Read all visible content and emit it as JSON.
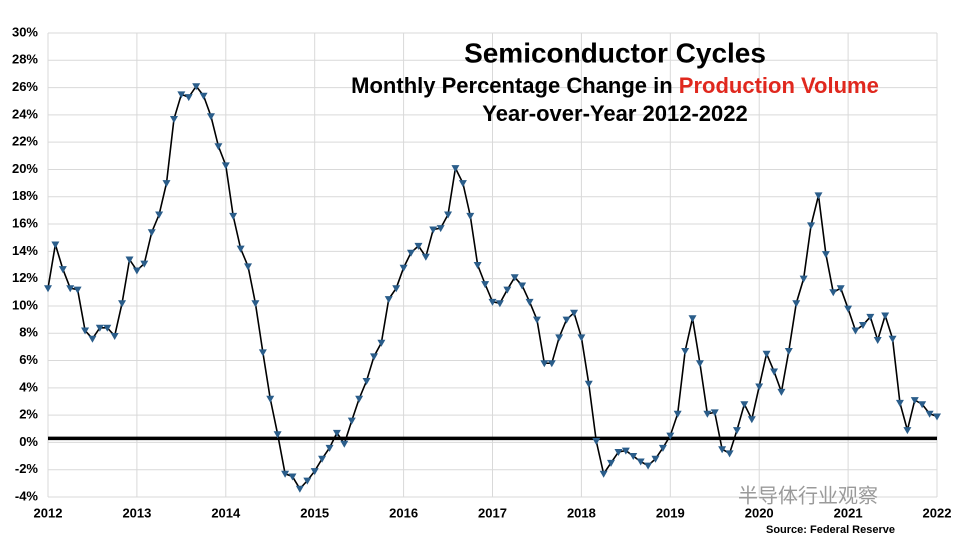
{
  "chart_data": {
    "type": "line",
    "title": "Semiconductor Cycles",
    "subtitle": [
      "Monthly Percentage Change in ",
      "Production Volume"
    ],
    "subtitle_line2": "Year-over-Year 2012-2022",
    "source": "Source: Federal Reserve",
    "watermark": "半导体行业观察",
    "color": "#000000",
    "marker_color": "#2a5d8a",
    "highlight_color": "#e0281e",
    "reference_line": 0.3,
    "grid": true,
    "xlim": [
      2012,
      2022
    ],
    "xticks": [
      2012,
      2013,
      2014,
      2015,
      2016,
      2017,
      2018,
      2019,
      2020,
      2021,
      2022
    ],
    "ylim": [
      -4,
      30
    ],
    "yticks": [
      {
        "value": -4,
        "label": "-4%"
      },
      {
        "value": -2,
        "label": "-2%"
      },
      {
        "value": 0,
        "label": "0%"
      },
      {
        "value": 2,
        "label": "2%"
      },
      {
        "value": 4,
        "label": "4%"
      },
      {
        "value": 6,
        "label": "6%"
      },
      {
        "value": 8,
        "label": "8%"
      },
      {
        "value": 10,
        "label": "10%"
      },
      {
        "value": 12,
        "label": "12%"
      },
      {
        "value": 14,
        "label": "14%"
      },
      {
        "value": 16,
        "label": "16%"
      },
      {
        "value": 18,
        "label": "18%"
      },
      {
        "value": 20,
        "label": "20%"
      },
      {
        "value": 22,
        "label": "22%"
      },
      {
        "value": 24,
        "label": "24%"
      },
      {
        "value": 26,
        "label": "26%"
      },
      {
        "value": 28,
        "label": "28%"
      },
      {
        "value": 30,
        "label": "30%"
      }
    ],
    "x": [
      2012,
      2012.083,
      2012.167,
      2012.25,
      2012.333,
      2012.417,
      2012.5,
      2012.583,
      2012.667,
      2012.75,
      2012.833,
      2012.917,
      2013,
      2013.083,
      2013.167,
      2013.25,
      2013.333,
      2013.417,
      2013.5,
      2013.583,
      2013.667,
      2013.75,
      2013.833,
      2013.917,
      2014,
      2014.083,
      2014.167,
      2014.25,
      2014.333,
      2014.417,
      2014.5,
      2014.583,
      2014.667,
      2014.75,
      2014.833,
      2014.917,
      2015,
      2015.083,
      2015.167,
      2015.25,
      2015.333,
      2015.417,
      2015.5,
      2015.583,
      2015.667,
      2015.75,
      2015.833,
      2015.917,
      2016,
      2016.083,
      2016.167,
      2016.25,
      2016.333,
      2016.417,
      2016.5,
      2016.583,
      2016.667,
      2016.75,
      2016.833,
      2016.917,
      2017,
      2017.083,
      2017.167,
      2017.25,
      2017.333,
      2017.417,
      2017.5,
      2017.583,
      2017.667,
      2017.75,
      2017.833,
      2017.917,
      2018,
      2018.083,
      2018.167,
      2018.25,
      2018.333,
      2018.417,
      2018.5,
      2018.583,
      2018.667,
      2018.75,
      2018.833,
      2018.917,
      2019,
      2019.083,
      2019.167,
      2019.25,
      2019.333,
      2019.417,
      2019.5,
      2019.583,
      2019.667,
      2019.75,
      2019.833,
      2019.917,
      2020,
      2020.083,
      2020.167,
      2020.25,
      2020.333,
      2020.417,
      2020.5,
      2020.583,
      2020.667,
      2020.75,
      2020.833,
      2020.917,
      2021,
      2021.083,
      2021.167,
      2021.25,
      2021.333,
      2021.417,
      2021.5,
      2021.583,
      2021.667,
      2021.75,
      2021.833,
      2021.917,
      2022
    ],
    "values": [
      11.3,
      14.5,
      12.7,
      11.3,
      11.2,
      8.2,
      7.6,
      8.4,
      8.4,
      7.8,
      10.2,
      13.4,
      12.6,
      13.1,
      15.4,
      16.7,
      19.0,
      23.7,
      25.5,
      25.3,
      26.1,
      25.4,
      23.9,
      21.7,
      20.3,
      16.6,
      14.2,
      12.9,
      10.2,
      6.6,
      3.2,
      0.6,
      -2.3,
      -2.5,
      -3.4,
      -2.8,
      -2.1,
      -1.2,
      -0.4,
      0.7,
      -0.1,
      1.6,
      3.2,
      4.5,
      6.3,
      7.3,
      10.5,
      11.3,
      12.8,
      13.9,
      14.4,
      13.6,
      15.6,
      15.7,
      16.7,
      20.1,
      19.0,
      16.6,
      13.0,
      11.6,
      10.3,
      10.2,
      11.2,
      12.1,
      11.5,
      10.3,
      9.0,
      5.8,
      5.8,
      7.7,
      9.0,
      9.5,
      7.7,
      4.3,
      0.1,
      -2.3,
      -1.5,
      -0.7,
      -0.6,
      -1.0,
      -1.4,
      -1.7,
      -1.2,
      -0.4,
      0.5,
      2.1,
      6.7,
      9.1,
      5.8,
      2.1,
      2.2,
      -0.5,
      -0.8,
      0.9,
      2.8,
      1.7,
      4.1,
      6.5,
      5.2,
      3.7,
      6.7,
      10.2,
      12.0,
      15.9,
      18.1,
      13.8,
      11.0,
      11.3,
      9.8,
      8.2,
      8.6,
      9.2,
      7.5,
      9.3,
      7.6,
      2.9,
      0.9,
      3.1,
      2.8,
      2.1,
      1.9
    ]
  }
}
